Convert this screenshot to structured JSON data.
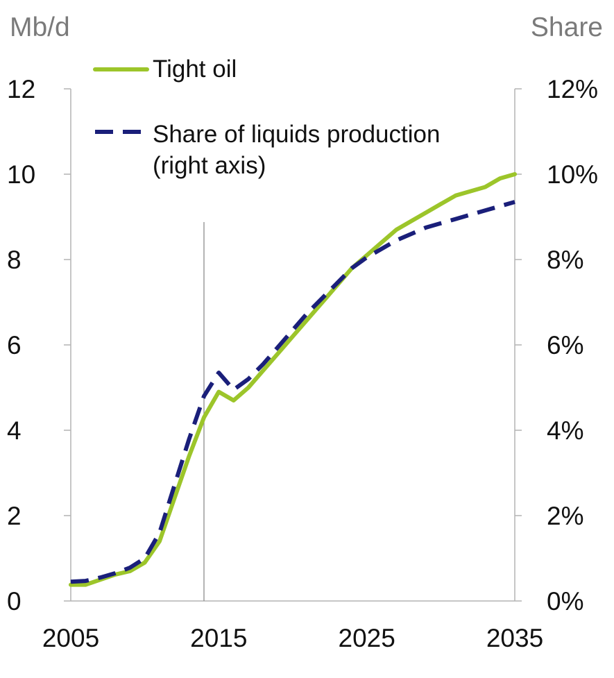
{
  "chart_data": {
    "type": "line",
    "title": "",
    "xlabel": "",
    "y_left_label": "Mb/d",
    "y_right_label": "Share",
    "x_ticks": [
      "2005",
      "2015",
      "2025",
      "2035"
    ],
    "y_left_ticks": [
      "0",
      "2",
      "4",
      "6",
      "8",
      "10",
      "12"
    ],
    "y_right_ticks": [
      "0%",
      "2%",
      "4%",
      "6%",
      "8%",
      "10%",
      "12%"
    ],
    "xlim": [
      2005,
      2035
    ],
    "ylim_left": [
      0,
      12
    ],
    "ylim_right": [
      0,
      12
    ],
    "vertical_marker_x": 2014,
    "legend": {
      "placement": "top-left"
    },
    "series": [
      {
        "name": "Tight oil",
        "axis": "left",
        "style": "solid",
        "color": "#9cc52a",
        "x": [
          2005,
          2006,
          2007,
          2008,
          2009,
          2010,
          2011,
          2012,
          2013,
          2014,
          2015,
          2016,
          2017,
          2018,
          2019,
          2020,
          2021,
          2022,
          2023,
          2024,
          2025,
          2026,
          2027,
          2028,
          2029,
          2030,
          2031,
          2032,
          2033,
          2034,
          2035
        ],
        "values": [
          0.38,
          0.38,
          0.5,
          0.62,
          0.7,
          0.9,
          1.4,
          2.4,
          3.4,
          4.3,
          4.9,
          4.7,
          5.0,
          5.4,
          5.8,
          6.2,
          6.6,
          7.0,
          7.4,
          7.8,
          8.1,
          8.4,
          8.7,
          8.9,
          9.1,
          9.3,
          9.5,
          9.6,
          9.7,
          9.9,
          10.0
        ]
      },
      {
        "name": "Share of liquids production (right axis)",
        "axis": "right",
        "style": "dashed",
        "color": "#1a1f7a",
        "x": [
          2005,
          2006,
          2007,
          2008,
          2009,
          2010,
          2011,
          2012,
          2013,
          2014,
          2015,
          2016,
          2017,
          2018,
          2019,
          2020,
          2021,
          2022,
          2023,
          2024,
          2025,
          2026,
          2027,
          2028,
          2029,
          2030,
          2031,
          2032,
          2033,
          2034,
          2035
        ],
        "values": [
          0.45,
          0.47,
          0.55,
          0.65,
          0.78,
          1.0,
          1.6,
          2.7,
          3.8,
          4.8,
          5.35,
          4.95,
          5.2,
          5.55,
          5.95,
          6.35,
          6.75,
          7.1,
          7.45,
          7.8,
          8.05,
          8.25,
          8.45,
          8.6,
          8.75,
          8.85,
          8.95,
          9.05,
          9.15,
          9.25,
          9.35
        ]
      }
    ]
  }
}
